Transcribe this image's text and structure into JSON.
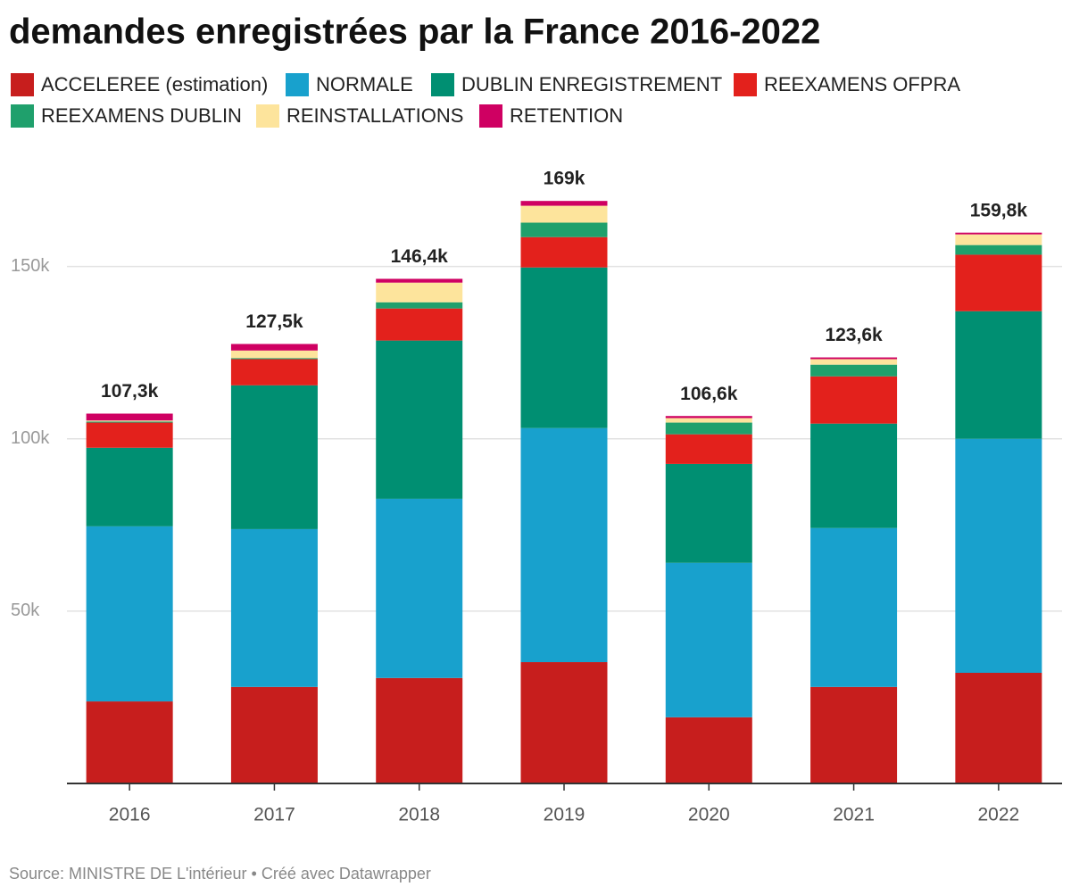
{
  "chart_data": {
    "type": "stacked_bar",
    "title": "demandes enregistrées par la France 2016-2022",
    "source": "Source: MINISTRE DE L'intérieur • Créé avec Datawrapper",
    "categories": [
      "2016",
      "2017",
      "2018",
      "2019",
      "2020",
      "2021",
      "2022"
    ],
    "series": [
      {
        "name": "ACCELEREE (estimation)",
        "color": "#c71e1d",
        "values": [
          23800,
          28000,
          30600,
          35200,
          19200,
          28000,
          32100
        ]
      },
      {
        "name": "NORMALE",
        "color": "#18a1cd",
        "values": [
          50800,
          45800,
          52000,
          67900,
          44800,
          46100,
          67900
        ]
      },
      {
        "name": "DUBLIN ENREGISTREMENT",
        "color": "#008f72",
        "values": [
          22800,
          41700,
          45900,
          46600,
          28700,
          30300,
          37000
        ]
      },
      {
        "name": "REEXAMENS OFPRA",
        "color": "#e3211c",
        "values": [
          7300,
          7600,
          9300,
          8800,
          8600,
          13700,
          16400
        ]
      },
      {
        "name": "REEXAMENS DUBLIN",
        "color": "#1fa06c",
        "values": [
          300,
          300,
          1800,
          4200,
          3400,
          3400,
          2800
        ]
      },
      {
        "name": "REINSTALLATIONS",
        "color": "#fde49c",
        "values": [
          300,
          2200,
          5700,
          4900,
          1300,
          1600,
          3100
        ]
      },
      {
        "name": "RETENTION",
        "color": "#cf0062",
        "values": [
          2000,
          1900,
          1100,
          1400,
          600,
          500,
          500
        ]
      }
    ],
    "totals": [
      107300,
      127500,
      146400,
      169000,
      106600,
      123600,
      159800
    ],
    "total_labels": [
      "107,3k",
      "127,5k",
      "146,4k",
      "169k",
      "106,6k",
      "123,6k",
      "159,8k"
    ],
    "ylim": [
      0,
      175000
    ],
    "yticks": [
      {
        "value": 50000,
        "label": "50k"
      },
      {
        "value": 100000,
        "label": "100k"
      },
      {
        "value": 150000,
        "label": "150k"
      }
    ],
    "grid": true
  }
}
